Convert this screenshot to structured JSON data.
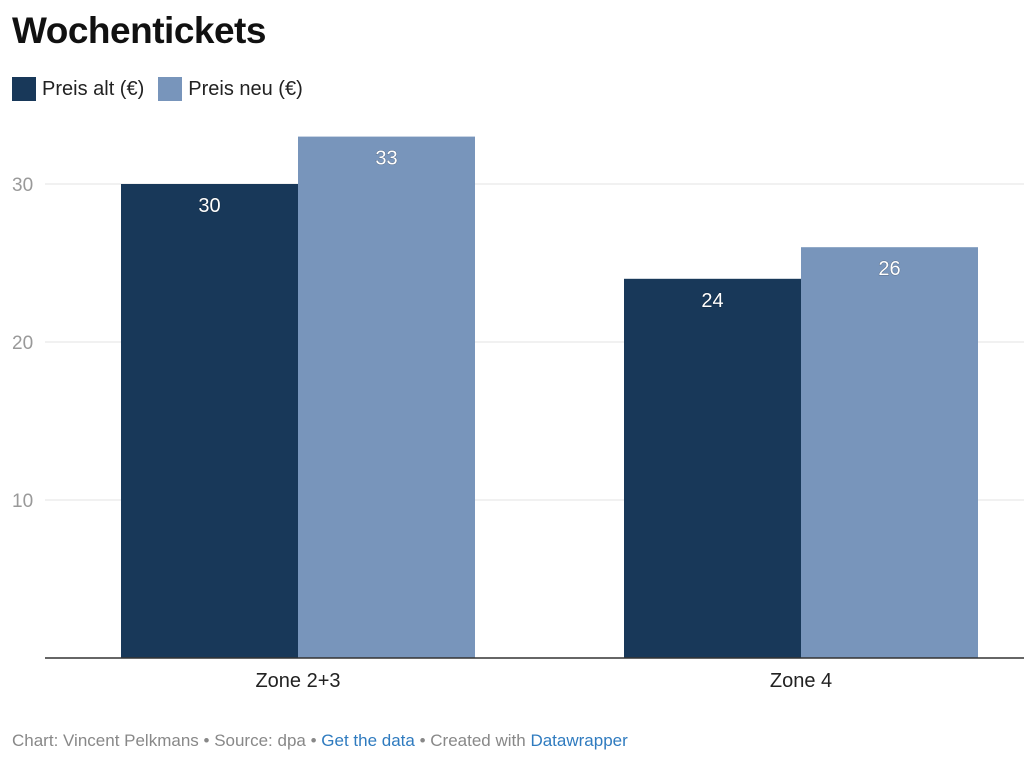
{
  "chart_data": {
    "type": "bar",
    "title": "Wochentickets",
    "categories": [
      "Zone 2+3",
      "Zone 4"
    ],
    "series": [
      {
        "name": "Preis alt (€)",
        "values": [
          30,
          24
        ],
        "color": "#183859"
      },
      {
        "name": "Preis neu (€)",
        "values": [
          33,
          26
        ],
        "color": "#7895bb"
      }
    ],
    "yticks": [
      10,
      20,
      30
    ],
    "ylim": [
      0,
      35
    ],
    "grid": true,
    "legend_position": "top-left",
    "data_labels": true
  },
  "footer": {
    "chart_credit": "Chart: Vincent Pelkmans",
    "separator": " • ",
    "source": "Source: dpa",
    "get_data": "Get the data",
    "created_with": "Created with ",
    "tool": "Datawrapper"
  }
}
